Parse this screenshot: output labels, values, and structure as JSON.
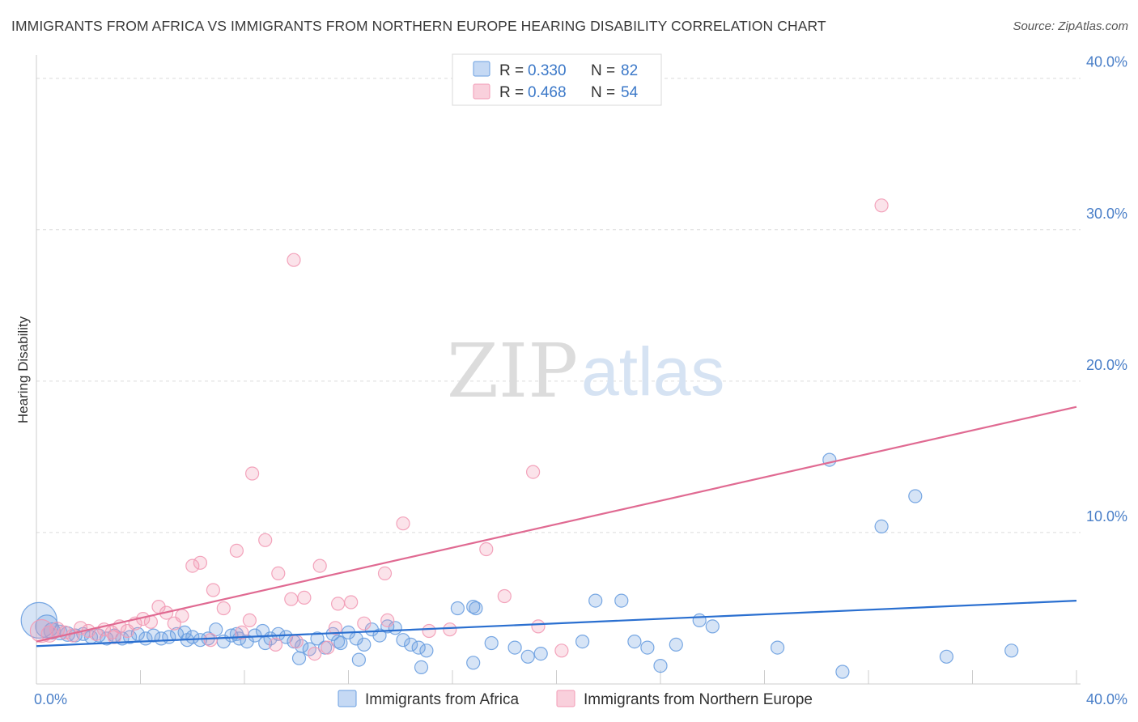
{
  "title": "IMMIGRANTS FROM AFRICA VS IMMIGRANTS FROM NORTHERN EUROPE HEARING DISABILITY CORRELATION CHART",
  "source": "Source: ZipAtlas.com",
  "watermark": {
    "part1": "ZIP",
    "part2": "atlas"
  },
  "chart_data": {
    "type": "scatter",
    "title": "IMMIGRANTS FROM AFRICA VS IMMIGRANTS FROM NORTHERN EUROPE HEARING DISABILITY CORRELATION CHART",
    "xlabel": "",
    "ylabel": "Hearing Disability",
    "xlim": [
      0,
      40
    ],
    "ylim": [
      0,
      41
    ],
    "x_tick_labels": [
      "0.0%",
      "40.0%"
    ],
    "y_ticks": [
      10,
      20,
      30,
      40
    ],
    "y_tick_labels": [
      "10.0%",
      "20.0%",
      "30.0%",
      "40.0%"
    ],
    "legend": {
      "position": "top-center",
      "entries": [
        {
          "r_label": "R = ",
          "r_value": "0.330",
          "n_label": "N = ",
          "n_value": "82"
        },
        {
          "r_label": "R = ",
          "r_value": "0.468",
          "n_label": "N = ",
          "n_value": "54"
        }
      ]
    },
    "series": [
      {
        "name": "Immigrants from Africa",
        "color": "#6a9fe0",
        "line_color": "#2a6fd0",
        "trend": {
          "x": [
            0,
            40
          ],
          "y": [
            2.5,
            5.5
          ]
        },
        "points": [
          [
            0.1,
            4.2,
            22
          ],
          [
            0.4,
            3.8,
            14
          ],
          [
            0.6,
            3.5,
            10
          ],
          [
            0.9,
            3.4,
            9
          ],
          [
            1.2,
            3.3,
            9
          ],
          [
            1.5,
            3.2,
            8
          ],
          [
            1.8,
            3.3,
            8
          ],
          [
            2.1,
            3.1,
            8
          ],
          [
            2.4,
            3.2,
            8
          ],
          [
            2.7,
            3.0,
            8
          ],
          [
            3.0,
            3.2,
            8
          ],
          [
            3.3,
            3.0,
            8
          ],
          [
            3.6,
            3.1,
            8
          ],
          [
            3.9,
            3.3,
            8
          ],
          [
            4.2,
            3.0,
            8
          ],
          [
            4.5,
            3.2,
            8
          ],
          [
            4.8,
            3.0,
            8
          ],
          [
            5.1,
            3.1,
            8
          ],
          [
            5.4,
            3.3,
            8
          ],
          [
            5.7,
            3.4,
            8
          ],
          [
            6.0,
            3.1,
            8
          ],
          [
            6.3,
            2.9,
            8
          ],
          [
            6.6,
            3.0,
            8
          ],
          [
            6.9,
            3.6,
            8
          ],
          [
            7.2,
            2.8,
            8
          ],
          [
            7.5,
            3.2,
            8
          ],
          [
            7.8,
            3.0,
            8
          ],
          [
            8.1,
            2.8,
            8
          ],
          [
            8.4,
            3.2,
            8
          ],
          [
            8.7,
            3.5,
            8
          ],
          [
            9.0,
            3.0,
            8
          ],
          [
            9.3,
            3.3,
            8
          ],
          [
            9.6,
            3.1,
            8
          ],
          [
            9.9,
            2.8,
            8
          ],
          [
            10.2,
            2.5,
            8
          ],
          [
            10.5,
            2.3,
            8
          ],
          [
            10.8,
            3.0,
            8
          ],
          [
            11.1,
            2.4,
            8
          ],
          [
            11.4,
            3.3,
            8
          ],
          [
            11.7,
            2.7,
            8
          ],
          [
            12.0,
            3.4,
            8
          ],
          [
            12.3,
            3.0,
            8
          ],
          [
            12.6,
            2.6,
            8
          ],
          [
            12.9,
            3.6,
            8
          ],
          [
            13.2,
            3.2,
            8
          ],
          [
            13.5,
            3.8,
            8
          ],
          [
            13.8,
            3.7,
            8
          ],
          [
            14.1,
            2.9,
            8
          ],
          [
            14.4,
            2.6,
            8
          ],
          [
            14.7,
            2.4,
            8
          ],
          [
            15.0,
            2.2,
            8
          ],
          [
            16.2,
            5.0,
            8
          ],
          [
            16.8,
            5.1,
            8
          ],
          [
            16.9,
            5.0,
            8
          ],
          [
            17.5,
            2.7,
            8
          ],
          [
            18.4,
            2.4,
            8
          ],
          [
            18.9,
            1.8,
            8
          ],
          [
            19.4,
            2.0,
            8
          ],
          [
            21.5,
            5.5,
            8
          ],
          [
            22.5,
            5.5,
            8
          ],
          [
            23.0,
            2.8,
            8
          ],
          [
            23.5,
            2.4,
            8
          ],
          [
            24.0,
            1.2,
            8
          ],
          [
            24.6,
            2.6,
            8
          ],
          [
            25.5,
            4.2,
            8
          ],
          [
            26.0,
            3.8,
            8
          ],
          [
            28.5,
            2.4,
            8
          ],
          [
            30.5,
            14.8,
            8
          ],
          [
            31.0,
            0.8,
            8
          ],
          [
            32.5,
            10.4,
            8
          ],
          [
            33.8,
            12.4,
            8
          ],
          [
            35.0,
            1.8,
            8
          ],
          [
            37.5,
            2.2,
            8
          ],
          [
            12.4,
            1.6,
            8
          ],
          [
            16.8,
            1.4,
            8
          ],
          [
            10.1,
            1.7,
            8
          ],
          [
            14.8,
            1.1,
            8
          ],
          [
            21.0,
            2.8,
            8
          ],
          [
            5.8,
            2.9,
            8
          ],
          [
            8.8,
            2.7,
            8
          ],
          [
            11.6,
            2.8,
            8
          ],
          [
            7.7,
            3.3,
            8
          ]
        ]
      },
      {
        "name": "Immigrants from Northern Europe",
        "color": "#f29ab5",
        "line_color": "#e06a92",
        "trend": {
          "x": [
            0,
            40
          ],
          "y": [
            2.8,
            18.3
          ]
        },
        "points": [
          [
            0.2,
            3.5,
            14
          ],
          [
            0.5,
            3.3,
            10
          ],
          [
            0.8,
            3.6,
            9
          ],
          [
            1.1,
            3.4,
            8
          ],
          [
            1.4,
            3.2,
            8
          ],
          [
            1.7,
            3.7,
            8
          ],
          [
            2.0,
            3.5,
            8
          ],
          [
            2.3,
            3.3,
            8
          ],
          [
            2.6,
            3.6,
            8
          ],
          [
            2.9,
            3.4,
            8
          ],
          [
            3.2,
            3.8,
            8
          ],
          [
            3.5,
            3.5,
            8
          ],
          [
            3.8,
            4.0,
            8
          ],
          [
            4.1,
            4.3,
            8
          ],
          [
            4.4,
            4.1,
            8
          ],
          [
            4.7,
            5.1,
            8
          ],
          [
            5.0,
            4.7,
            8
          ],
          [
            5.3,
            4.0,
            8
          ],
          [
            5.6,
            4.5,
            8
          ],
          [
            6.0,
            7.8,
            8
          ],
          [
            6.3,
            8.0,
            8
          ],
          [
            6.8,
            6.2,
            8
          ],
          [
            7.2,
            5.0,
            8
          ],
          [
            7.7,
            8.8,
            8
          ],
          [
            8.2,
            4.2,
            8
          ],
          [
            8.8,
            9.5,
            8
          ],
          [
            9.3,
            7.3,
            8
          ],
          [
            9.8,
            5.6,
            8
          ],
          [
            10.3,
            5.7,
            8
          ],
          [
            10.9,
            7.8,
            8
          ],
          [
            11.2,
            2.4,
            8
          ],
          [
            11.6,
            5.3,
            8
          ],
          [
            12.1,
            5.4,
            8
          ],
          [
            12.6,
            4.0,
            8
          ],
          [
            13.4,
            7.3,
            8
          ],
          [
            14.1,
            10.6,
            8
          ],
          [
            15.1,
            3.5,
            8
          ],
          [
            15.9,
            3.6,
            8
          ],
          [
            17.3,
            8.9,
            8
          ],
          [
            18.0,
            5.8,
            8
          ],
          [
            19.1,
            14.0,
            8
          ],
          [
            19.3,
            3.8,
            8
          ],
          [
            20.2,
            2.2,
            8
          ],
          [
            32.5,
            31.6,
            8
          ],
          [
            9.9,
            28.0,
            8
          ],
          [
            8.3,
            13.9,
            8
          ],
          [
            6.7,
            2.9,
            8
          ],
          [
            7.9,
            3.4,
            8
          ],
          [
            9.2,
            2.6,
            8
          ],
          [
            10.0,
            2.8,
            8
          ],
          [
            10.7,
            2.0,
            8
          ],
          [
            11.5,
            3.7,
            8
          ],
          [
            13.5,
            4.2,
            8
          ],
          [
            3.0,
            3.1,
            8
          ]
        ]
      }
    ]
  }
}
